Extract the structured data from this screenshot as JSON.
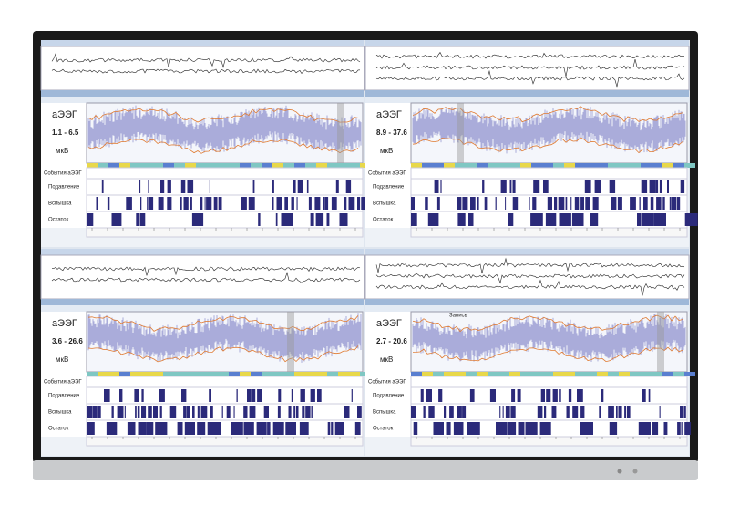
{
  "panels": [
    {
      "amplitude_label": "аЭЭГ",
      "range": "1.1 - 6.5",
      "unit": "мкВ",
      "row_labels": [
        "События аЭЭГ",
        "Подавление",
        "Вспышка",
        "Остаток"
      ]
    },
    {
      "amplitude_label": "аЭЭГ",
      "range": "8.9 - 37.6",
      "unit": "мкВ",
      "row_labels": [
        "События аЭЭГ",
        "Подавление",
        "Вспышка",
        "Остаток"
      ]
    },
    {
      "amplitude_label": "аЭЭГ",
      "range": "3.6 - 26.6",
      "unit": "мкВ",
      "row_labels": [
        "События аЭЭГ",
        "Подавление",
        "Вспышка",
        "Остаток"
      ]
    },
    {
      "amplitude_label": "аЭЭГ",
      "range": "2.7 - 20.6",
      "unit": "мкВ",
      "row_labels": [
        "События аЭЭГ",
        "Подавление",
        "Вспышка",
        "Остаток"
      ],
      "annotation": "Запись"
    }
  ]
}
